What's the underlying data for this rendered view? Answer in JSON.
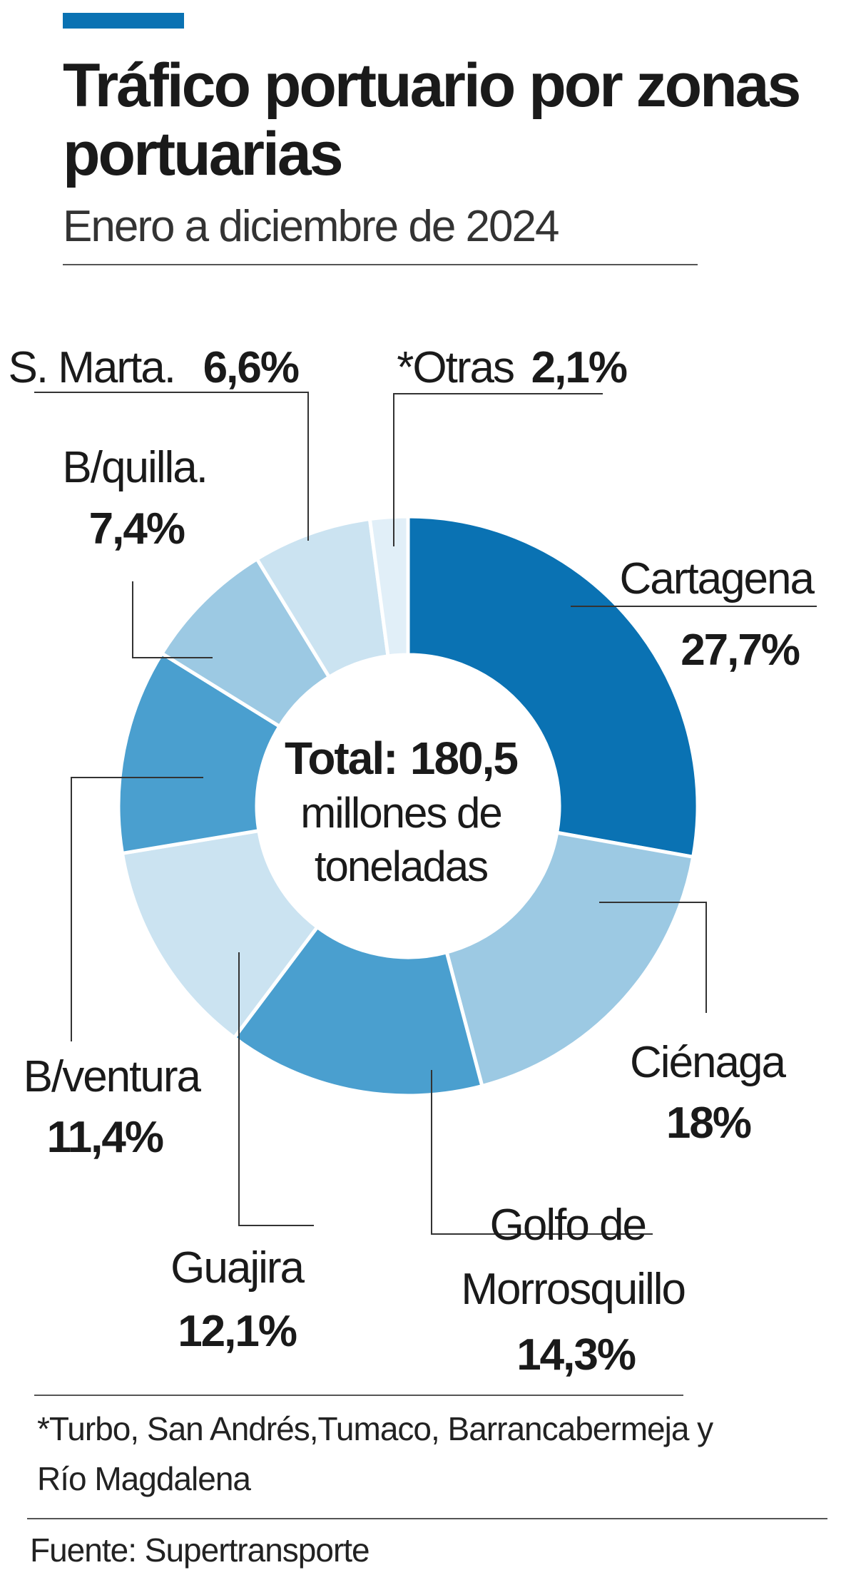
{
  "title": "Tráfico portuario por zonas portuarias",
  "subtitle": "Enero a diciembre de 2024",
  "colors": {
    "accent": "#0a72b3",
    "dark_blue": "#0a72b3",
    "mid_blue": "#4a9fcf",
    "light_blue": "#9cc9e3",
    "pale_blue": "#cbe3f1",
    "palest_blue": "#e1eff8"
  },
  "chart_data": {
    "type": "pie",
    "donut": true,
    "center": {
      "total_label": "Total:",
      "total_value": "180,5",
      "unit_line1": "millones de",
      "unit_line2": "toneladas"
    },
    "slices": [
      {
        "label": "Cartagena",
        "value": 27.7,
        "display": "27,7%",
        "color": "#0a72b3"
      },
      {
        "label": "Ciénaga",
        "value": 18,
        "display": "18%",
        "color": "#9cc9e3"
      },
      {
        "label": "Golfo de Morrosquillo",
        "label_line1": "Golfo de",
        "label_line2": "Morrosquillo",
        "value": 14.3,
        "display": "14,3%",
        "color": "#4a9fcf"
      },
      {
        "label": "Guajira",
        "value": 12.1,
        "display": "12,1%",
        "color": "#cbe3f1"
      },
      {
        "label": "B/ventura",
        "value": 11.4,
        "display": "11,4%",
        "color": "#4a9fcf"
      },
      {
        "label": "B/quilla.",
        "value": 7.4,
        "display": "7,4%",
        "color": "#9cc9e3"
      },
      {
        "label": "S. Marta.",
        "value": 6.6,
        "display": "6,6%",
        "color": "#cbe3f1"
      },
      {
        "label": "*Otras",
        "value": 2.1,
        "display": "2,1%",
        "color": "#e1eff8"
      }
    ]
  },
  "footnote": "*Turbo, San Andrés,Tumaco, Barrancabermeja y Río Magdalena",
  "source": "Fuente: Supertransporte"
}
